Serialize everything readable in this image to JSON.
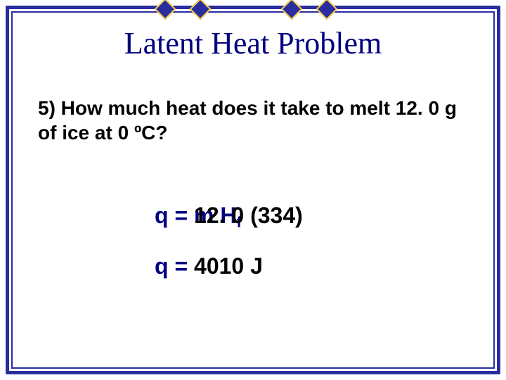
{
  "colors": {
    "border": "#2a2d9e",
    "ornament_border": "#ffd24a",
    "title_color": "#000080",
    "text_black": "#000000",
    "formula_blue": "#000080",
    "background": "#ffffff"
  },
  "title": "Latent Heat Problem",
  "question": "5) How much heat does it take to melt 12. 0 g of ice at 0 ºC?",
  "formula": {
    "q_prefix": "q = ",
    "formula_base_m": "m ",
    "formula_base_H": "H",
    "formula_base_sub": "f",
    "substituted": "12. 0 (334)",
    "answer_prefix": "q = ",
    "answer_value": "4010 J"
  }
}
